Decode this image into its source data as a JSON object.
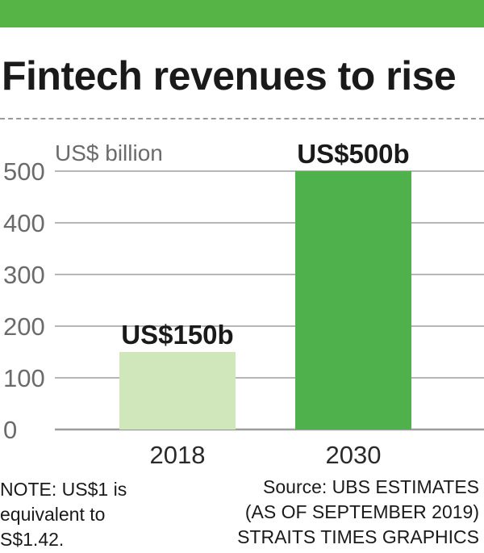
{
  "colors": {
    "accent_bar": "#56b447",
    "bar_2018": "#d0e6bb",
    "bar_2030": "#4fb14b",
    "gridline": "#9d9d9d",
    "axis_text": "#6b6b6b"
  },
  "header": {
    "title": "Fintech revenues to rise"
  },
  "chart_data": {
    "type": "bar",
    "title": "Fintech revenues to rise",
    "ylabel": "US$ billion",
    "xlabel": "",
    "ylim": [
      0,
      500
    ],
    "yticks": [
      0,
      100,
      200,
      300,
      400,
      500
    ],
    "ytick_labels": [
      "0",
      "100",
      "200",
      "300",
      "400",
      "500"
    ],
    "categories": [
      "2018",
      "2030"
    ],
    "values": [
      150,
      500
    ],
    "data_labels": [
      "US$150b",
      "US$500b"
    ],
    "grid": true,
    "legend": "none"
  },
  "footer": {
    "note": [
      "NOTE: US$1 is",
      "equivalent to",
      "S$1.42."
    ],
    "source": [
      "Source: UBS ESTIMATES",
      "(AS OF SEPTEMBER 2019)",
      "STRAITS TIMES GRAPHICS"
    ]
  }
}
